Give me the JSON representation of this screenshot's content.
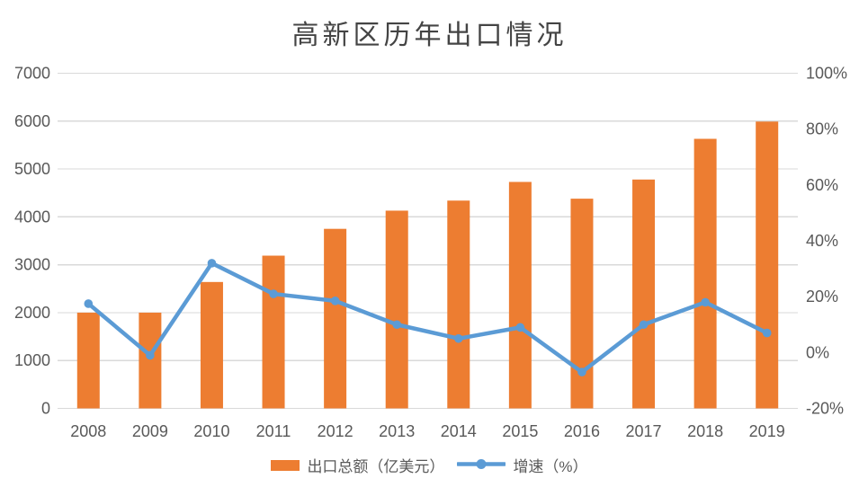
{
  "chart": {
    "title": "高新区历年出口情况"
  },
  "chart_data": {
    "type": "bar",
    "subtype": "combo-bar-line",
    "title": "高新区历年出口情况",
    "title_color": "#444444",
    "categories": [
      "2008",
      "2009",
      "2010",
      "2011",
      "2012",
      "2013",
      "2014",
      "2015",
      "2016",
      "2017",
      "2018",
      "2019"
    ],
    "series": [
      {
        "name": "出口总额（亿美元）",
        "type": "bar",
        "axis": "left",
        "color": "#ED7D31",
        "values": [
          2000,
          2000,
          2640,
          3190,
          3750,
          4130,
          4340,
          4730,
          4380,
          4780,
          5630,
          5990
        ]
      },
      {
        "name": "增速（%）",
        "type": "line",
        "axis": "right",
        "color": "#5B9BD5",
        "values": [
          17.5,
          -1,
          32,
          21,
          18.5,
          10,
          5,
          9,
          -7,
          10,
          18,
          7
        ]
      }
    ],
    "left_axis": {
      "min": 0,
      "max": 7000,
      "ticks": [
        0,
        1000,
        2000,
        3000,
        4000,
        5000,
        6000,
        7000
      ],
      "labels": [
        "0",
        "1000",
        "2000",
        "3000",
        "4000",
        "5000",
        "6000",
        "7000"
      ]
    },
    "right_axis": {
      "min": -20,
      "max": 100,
      "ticks": [
        -20,
        0,
        20,
        40,
        60,
        80,
        100
      ],
      "labels": [
        "-20%",
        "0%",
        "20%",
        "40%",
        "60%",
        "80%",
        "100%"
      ]
    },
    "grid": "horizontal",
    "grid_color": "#D9D9D9",
    "axis_text_color": "#595959",
    "legend_position": "bottom"
  }
}
